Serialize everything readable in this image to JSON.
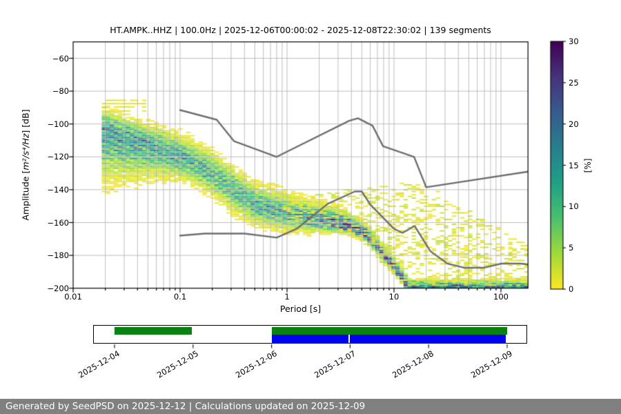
{
  "header": {
    "title": "HT.AMPK..HHZ | 100.0Hz | 2025-12-06T00:00:02 - 2025-12-08T22:30:02 | 139 segments",
    "station": "HT.AMPK..HHZ",
    "sampling_rate": "100.0Hz",
    "window_start": "2025-12-06T00:00:02",
    "window_end": "2025-12-08T22:30:02",
    "segments_count": 139
  },
  "footer": {
    "text": "Generated by SeedPSD on 2025-12-12 | Calculations updated on 2025-12-09",
    "background": "#808080",
    "text_color": "#ffffff"
  },
  "chart_data": {
    "type": "heatmap",
    "title": "HT.AMPK..HHZ | 100.0Hz | 2025-12-06T00:00:02 - 2025-12-08T22:30:02 | 139 segments",
    "xlabel": "Period [s]",
    "ylabel": {
      "prefix": "Amplitude [",
      "math": "m²/s⁴/Hz",
      "suffix": "] [dB]"
    },
    "xscale": "log",
    "xlim": [
      0.01,
      179
    ],
    "ylim": [
      -200,
      -50
    ],
    "grid": true,
    "x_tick_values": [
      0.01,
      0.1,
      1,
      10,
      100
    ],
    "x_tick_labels": [
      "0.01",
      "0.1",
      "1",
      "10",
      "100"
    ],
    "y_tick_values": [
      -60,
      -80,
      -100,
      -120,
      -140,
      -160,
      -180,
      -200
    ],
    "y_tick_labels": [
      "−60",
      "−80",
      "−100",
      "−120",
      "−140",
      "−160",
      "−180",
      "−200"
    ],
    "colorbar": {
      "label": "[%]",
      "colormap": "viridis_r",
      "range": [
        0,
        30
      ],
      "tick_values": [
        0,
        5,
        10,
        15,
        20,
        25,
        30
      ],
      "tick_labels": [
        "0",
        "5",
        "10",
        "15",
        "20",
        "25",
        "30"
      ]
    },
    "noise_model_color": "#6e6e6e",
    "grid_color": "#b5b5b5",
    "noise_models": {
      "nhnm": [
        [
          0.1,
          -91.5
        ],
        [
          0.22,
          -97.4
        ],
        [
          0.32,
          -110.5
        ],
        [
          0.8,
          -120.0
        ],
        [
          3.8,
          -98.1
        ],
        [
          4.6,
          -96.5
        ],
        [
          6.3,
          -101.0
        ],
        [
          7.9,
          -113.5
        ],
        [
          15.4,
          -120.0
        ],
        [
          20.0,
          -138.5
        ],
        [
          179,
          -129.0
        ]
      ],
      "nlnm": [
        [
          0.1,
          -168.0
        ],
        [
          0.17,
          -166.7
        ],
        [
          0.4,
          -166.7
        ],
        [
          0.8,
          -169.2
        ],
        [
          1.24,
          -163.7
        ],
        [
          2.4,
          -148.6
        ],
        [
          4.3,
          -141.1
        ],
        [
          5.0,
          -141.1
        ],
        [
          6.0,
          -149.0
        ],
        [
          10.0,
          -163.8
        ],
        [
          12.0,
          -166.3
        ],
        [
          15.6,
          -162.1
        ],
        [
          21.9,
          -177.5
        ],
        [
          31.6,
          -185.0
        ],
        [
          45.0,
          -187.5
        ],
        [
          70.0,
          -187.5
        ],
        [
          101.0,
          -185.0
        ],
        [
          154.0,
          -185.0
        ],
        [
          179,
          -185.5
        ]
      ]
    },
    "ppsd": {
      "period_range": [
        0.0185,
        179
      ],
      "db_bin": 1,
      "period_bins_per_octave": 8,
      "mode": [
        [
          0.02,
          -103
        ],
        [
          0.032,
          -108
        ],
        [
          0.05,
          -112.5
        ],
        [
          0.08,
          -117.5
        ],
        [
          0.125,
          -123
        ],
        [
          0.2,
          -130.5
        ],
        [
          0.32,
          -141
        ],
        [
          0.5,
          -149.5
        ],
        [
          0.8,
          -153.5
        ],
        [
          1.0,
          -155
        ],
        [
          1.5,
          -157
        ],
        [
          2.2,
          -159
        ],
        [
          3.2,
          -161.5
        ],
        [
          4.2,
          -164
        ],
        [
          5.2,
          -167.5
        ],
        [
          6.5,
          -174
        ],
        [
          8.5,
          -183.5
        ],
        [
          10.5,
          -190.5
        ],
        [
          12.5,
          -198
        ],
        [
          13.3,
          -200.3
        ]
      ],
      "pmax": [
        [
          0.02,
          15
        ],
        [
          0.05,
          14
        ],
        [
          0.1,
          13
        ],
        [
          0.25,
          11
        ],
        [
          0.5,
          12
        ],
        [
          1.0,
          13
        ],
        [
          1.8,
          16
        ],
        [
          2.6,
          24
        ],
        [
          3.5,
          29
        ],
        [
          5,
          27
        ],
        [
          8,
          28
        ],
        [
          11,
          27
        ],
        [
          13.3,
          25
        ]
      ],
      "sigma_up": [
        [
          0.02,
          5
        ],
        [
          0.05,
          5.5
        ],
        [
          0.1,
          6
        ],
        [
          0.3,
          6
        ],
        [
          0.8,
          6
        ],
        [
          1.5,
          5
        ],
        [
          3,
          4
        ],
        [
          5,
          3
        ],
        [
          8,
          2.8
        ],
        [
          13,
          2.5
        ]
      ],
      "sigma_down": [
        [
          0.02,
          14
        ],
        [
          0.05,
          9
        ],
        [
          0.1,
          6
        ],
        [
          0.3,
          6.5
        ],
        [
          0.8,
          5
        ],
        [
          1.5,
          4
        ],
        [
          3,
          2.2
        ],
        [
          5,
          1.8
        ],
        [
          13,
          1.5
        ]
      ],
      "streak_rows": [
        -85.5,
        -87.5,
        -89.5,
        -92
      ],
      "streak_period_max": 0.05,
      "fan_range": [
        0.95,
        179
      ],
      "fan_fill": 0.3,
      "fan_pmax": 2.6,
      "fan_upper": [
        [
          0.95,
          -140
        ],
        [
          2.5,
          -140.5
        ],
        [
          5,
          -139
        ],
        [
          9,
          -136
        ],
        [
          16,
          -134.5
        ],
        [
          25,
          -139
        ],
        [
          40,
          -148
        ],
        [
          70,
          -158
        ],
        [
          110,
          -166
        ],
        [
          179,
          -175
        ]
      ],
      "fan_lower": [
        [
          0.95,
          -160
        ],
        [
          2.5,
          -163
        ],
        [
          4,
          -167
        ],
        [
          6,
          -178
        ],
        [
          8.5,
          -190
        ],
        [
          11,
          -199
        ],
        [
          13,
          -200
        ],
        [
          179,
          -200
        ]
      ],
      "bottom_line": {
        "from": 13,
        "p_min": 8,
        "p_max": 24
      }
    },
    "seed": 20251212
  },
  "timeline": {
    "tick_labels": [
      "2025-12-04",
      "2025-12-05",
      "2025-12-06",
      "2025-12-07",
      "2025-12-08",
      "2025-12-09"
    ],
    "green_color": "#0a820f",
    "blue_color": "#0000f0",
    "segments": [
      {
        "start_day": 0.0,
        "end_day": 0.985,
        "row": "top",
        "color": "#0a820f"
      },
      {
        "start_day": 2.0,
        "end_day": 5.0,
        "row": "top",
        "color": "#0a820f"
      },
      {
        "start_day": 2.0,
        "end_day": 2.975,
        "row": "bottom",
        "color": "#0000f0"
      },
      {
        "start_day": 2.993,
        "end_day": 4.985,
        "row": "bottom",
        "color": "#0000f0"
      }
    ]
  }
}
